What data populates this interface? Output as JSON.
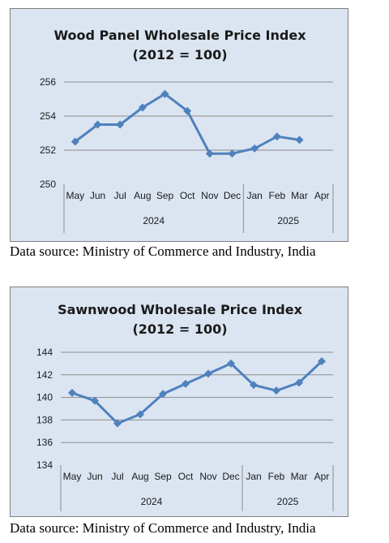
{
  "chart_data": [
    {
      "type": "line",
      "title": "Wood Panel Wholesale Price Index",
      "subtitle": "(2012 = 100)",
      "categories": [
        "May",
        "Jun",
        "Jul",
        "Aug",
        "Sep",
        "Oct",
        "Nov",
        "Dec",
        "Jan",
        "Feb",
        "Mar",
        "Apr"
      ],
      "years": [
        {
          "label": "2024",
          "from": "May",
          "to": "Dec"
        },
        {
          "label": "2025",
          "from": "Jan",
          "to": "Apr"
        }
      ],
      "series": [
        {
          "values": [
            252.5,
            253.5,
            253.5,
            254.5,
            255.3,
            254.3,
            251.8,
            251.8,
            252.1,
            252.8,
            252.6,
            null
          ]
        }
      ],
      "ylim": [
        250,
        256
      ],
      "yticks": [
        250,
        252,
        254,
        256
      ],
      "grid": true,
      "legend": "none",
      "colors": {
        "line": "#4f81bd",
        "background": "#dbe5f1",
        "grid": "#8c8c8c"
      }
    },
    {
      "type": "line",
      "title": "Sawnwood Wholesale Price Index",
      "subtitle": "(2012 = 100)",
      "categories": [
        "May",
        "Jun",
        "Jul",
        "Aug",
        "Sep",
        "Oct",
        "Nov",
        "Dec",
        "Jan",
        "Feb",
        "Mar",
        "Apr"
      ],
      "years": [
        {
          "label": "2024",
          "from": "May",
          "to": "Dec"
        },
        {
          "label": "2025",
          "from": "Jan",
          "to": "Apr"
        }
      ],
      "series": [
        {
          "values": [
            140.4,
            139.7,
            137.7,
            138.5,
            140.3,
            141.2,
            142.1,
            143.0,
            141.1,
            140.6,
            141.3,
            143.2
          ]
        }
      ],
      "ylim": [
        134,
        144
      ],
      "yticks": [
        134,
        136,
        138,
        140,
        142,
        144
      ],
      "grid": true,
      "legend": "none",
      "colors": {
        "line": "#4f81bd",
        "background": "#dbe5f1",
        "grid": "#8c8c8c"
      }
    }
  ],
  "sources": [
    "Data source: Ministry of Commerce and Industry, India",
    "Data source: Ministry of Commerce and Industry, India"
  ]
}
